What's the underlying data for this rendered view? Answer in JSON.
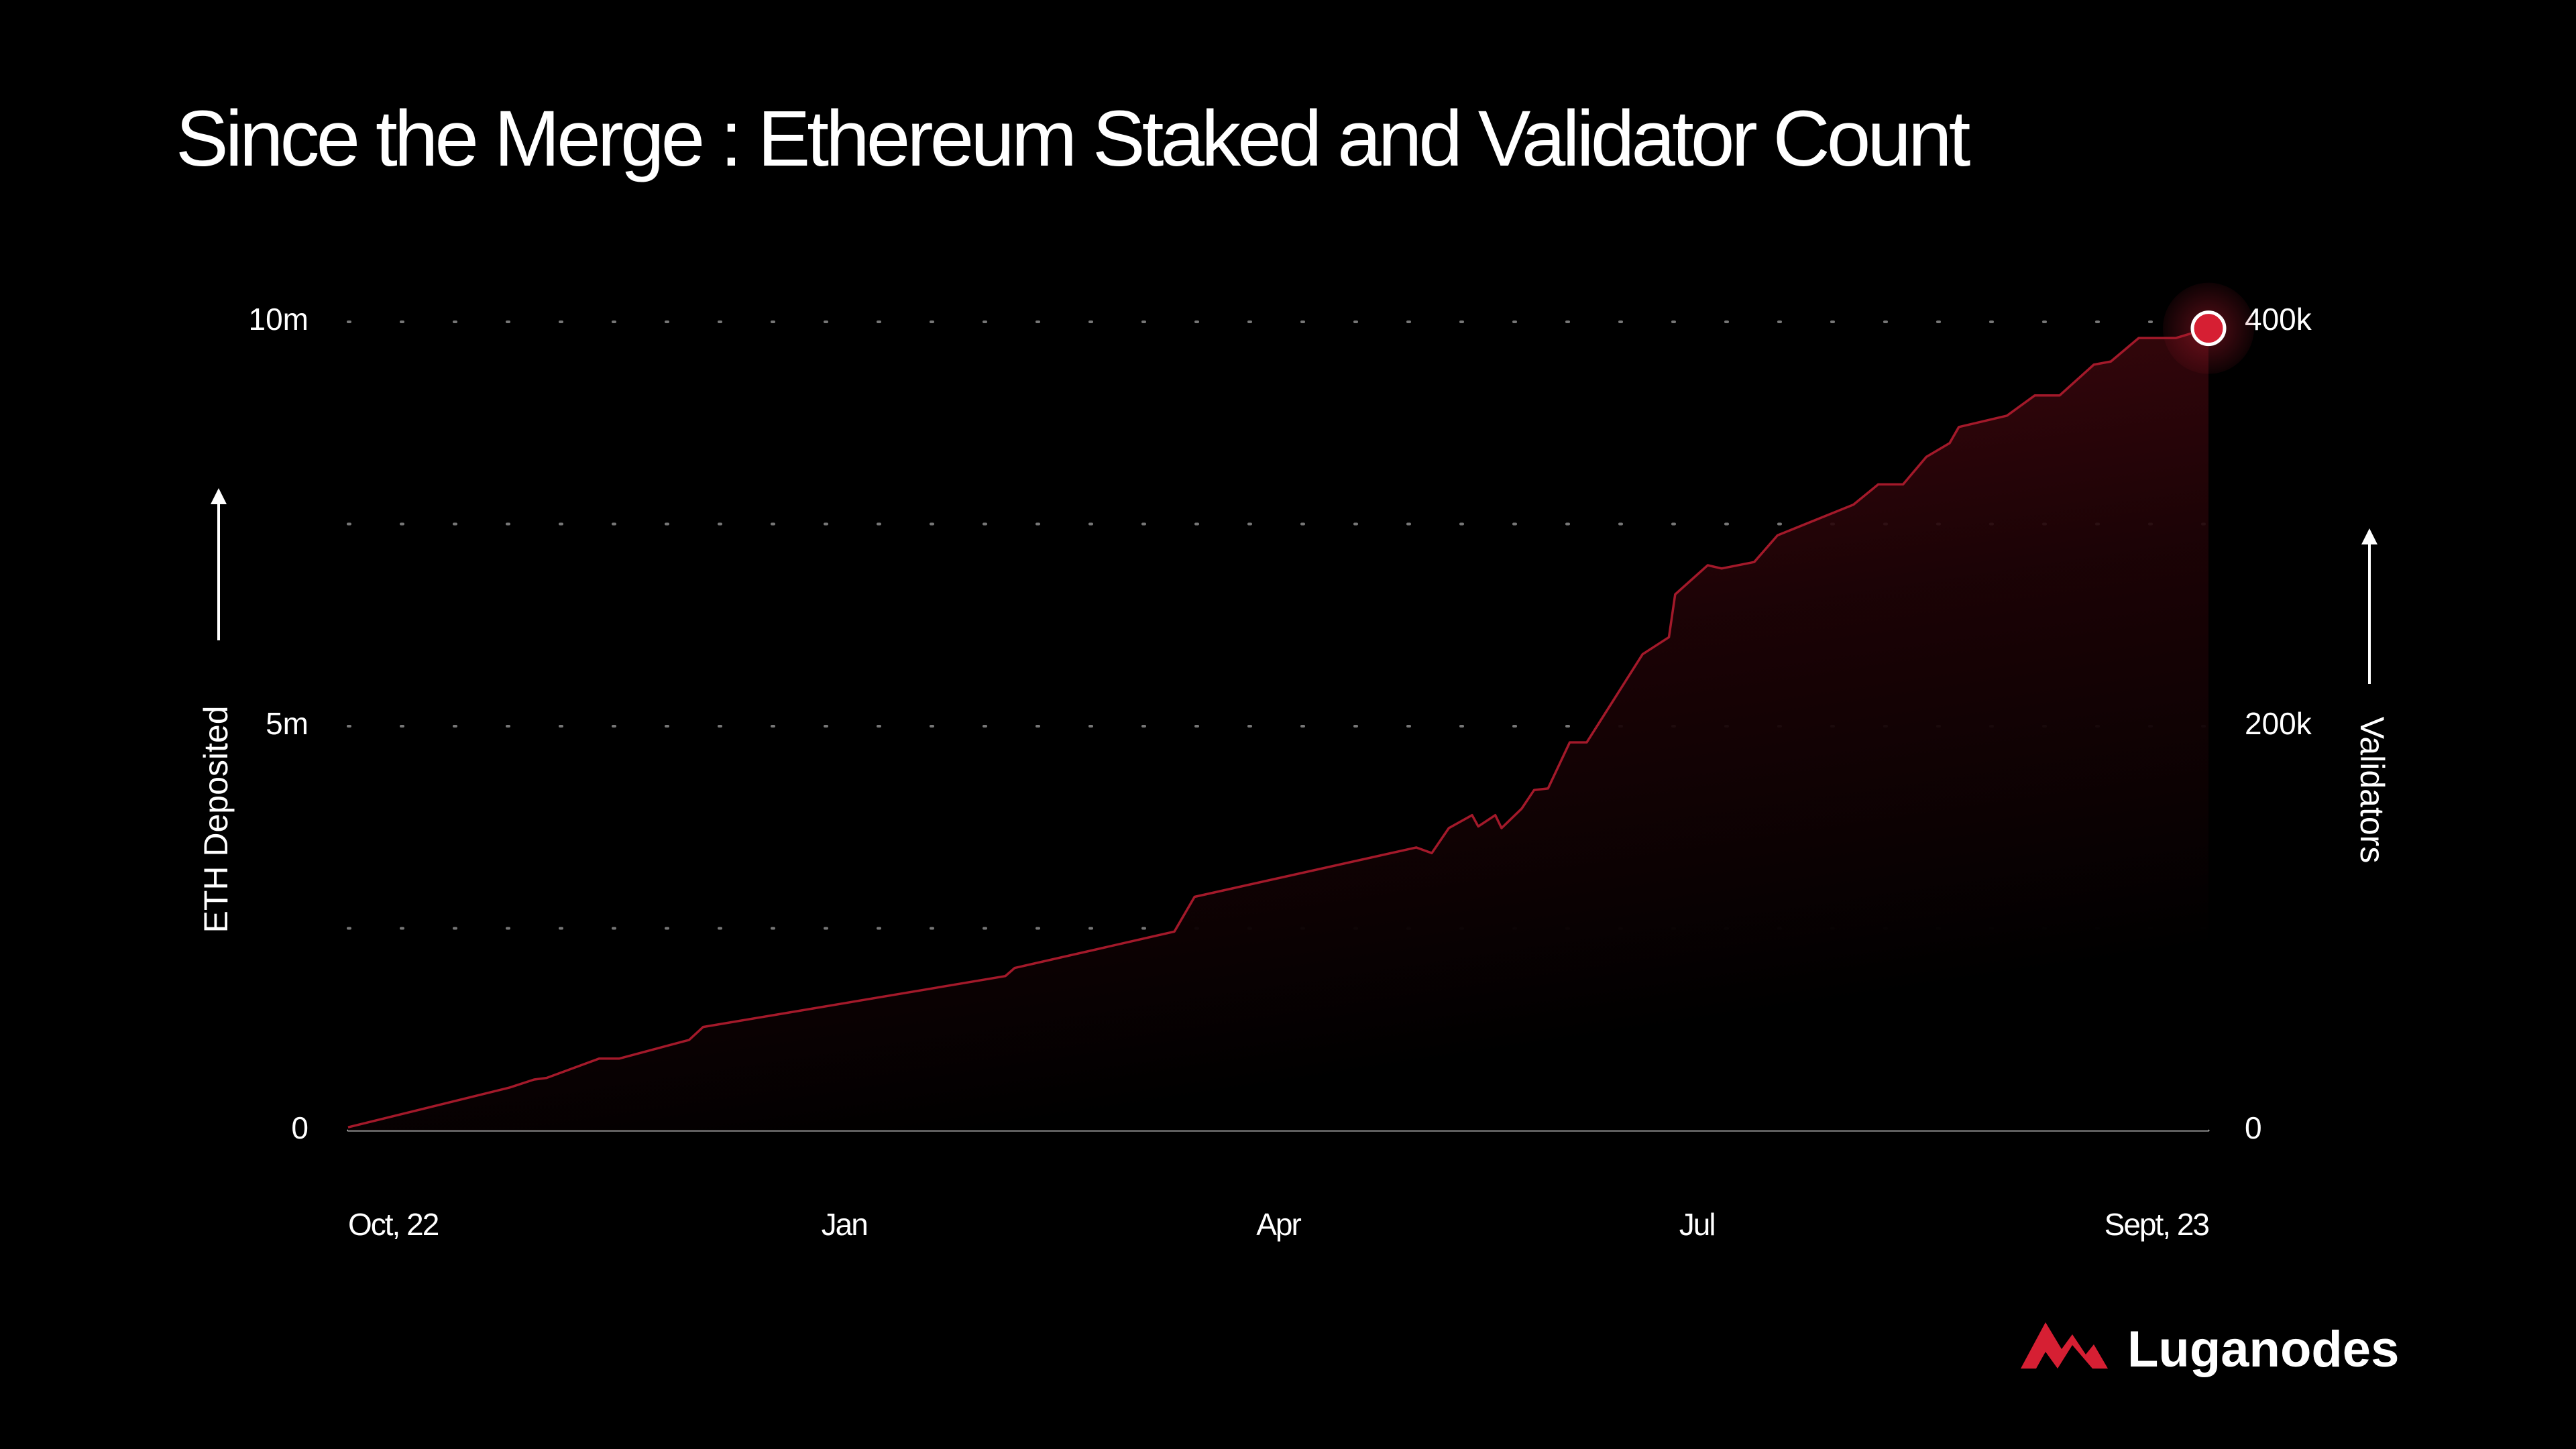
{
  "chart_data": {
    "type": "area",
    "title": "Since the Merge : Ethereum Staked and Validator Count",
    "y_label": "ETH Deposited",
    "y2_label": "Validators",
    "x": [
      0,
      1.04,
      1.2,
      1.28,
      1.62,
      1.75,
      2.2,
      2.29,
      4.24,
      4.3,
      5.33,
      5.46,
      6.89,
      6.99,
      7.1,
      7.25,
      7.29,
      7.4,
      7.44,
      7.57,
      7.65,
      7.74,
      7.88,
      7.99,
      8.35,
      8.52,
      8.56,
      8.77,
      8.86,
      9.07,
      9.22,
      9.71,
      9.87,
      10.03,
      10.18,
      10.33,
      10.39,
      10.7,
      10.88,
      11.04,
      11.26,
      11.37,
      11.55,
      11.79,
      12
    ],
    "xlim": [
      0,
      12
    ],
    "xticks": [
      {
        "value": 0,
        "label": "Oct, 22"
      },
      {
        "value": 3.2,
        "label": "Jan"
      },
      {
        "value": 6,
        "label": "Apr"
      },
      {
        "value": 8.7,
        "label": "Jul"
      },
      {
        "value": 12,
        "label": "Sept, 23"
      }
    ],
    "series": [
      {
        "name": "ETH Deposited",
        "color": "#a3192a",
        "values": [
          40000,
          530000,
          630000,
          650000,
          890000,
          890000,
          1120000,
          1280000,
          1910000,
          2010000,
          2460000,
          2890000,
          3500000,
          3430000,
          3740000,
          3900000,
          3760000,
          3900000,
          3740000,
          3980000,
          4210000,
          4230000,
          4800000,
          4800000,
          5890000,
          6100000,
          6630000,
          6990000,
          6950000,
          7030000,
          7360000,
          7740000,
          7990000,
          7990000,
          8330000,
          8500000,
          8700000,
          8840000,
          9090000,
          9090000,
          9470000,
          9510000,
          9800000,
          9800000,
          9920000
        ]
      }
    ],
    "ylim": [
      0,
      10000000
    ],
    "yticks": [
      0,
      {
        "value": 5000000,
        "label": "5m"
      },
      {
        "value": 10000000,
        "label": "10m"
      }
    ],
    "minor_yticks": [
      2500000,
      7500000
    ],
    "y2lim": [
      0,
      400000
    ],
    "y2ticks": [
      0,
      {
        "value": 200000,
        "label": "200k"
      },
      {
        "value": 400000,
        "label": "400k"
      }
    ],
    "grid": true
  },
  "brand": "Luganodes"
}
